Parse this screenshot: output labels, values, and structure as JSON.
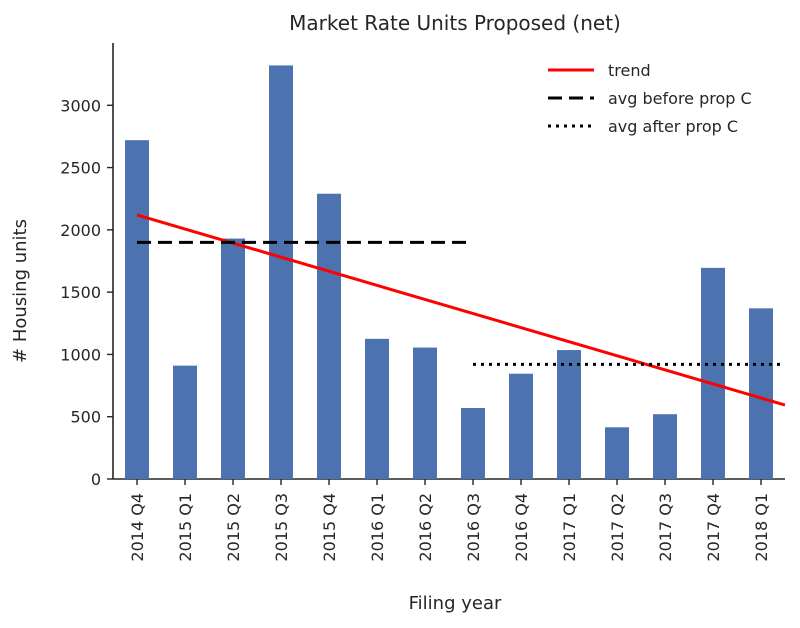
{
  "chart_data": {
    "type": "bar",
    "title": "Market Rate Units Proposed (net)",
    "xlabel": "Filing year",
    "ylabel": "# Housing units",
    "categories": [
      "2014 Q4",
      "2015 Q1",
      "2015 Q2",
      "2015 Q3",
      "2015 Q4",
      "2016 Q1",
      "2016 Q2",
      "2016 Q3",
      "2016 Q4",
      "2017 Q1",
      "2017 Q2",
      "2017 Q3",
      "2017 Q4",
      "2018 Q1"
    ],
    "values": [
      2720,
      910,
      1930,
      3320,
      2290,
      1125,
      1055,
      570,
      845,
      1035,
      415,
      520,
      1695,
      1370
    ],
    "ylim": [
      0,
      3500
    ],
    "yticks": [
      0,
      500,
      1000,
      1500,
      2000,
      2500,
      3000
    ],
    "grid": false,
    "bar_color": "#4c72b0",
    "lines": [
      {
        "name": "trend",
        "color": "#ff0000",
        "style": "solid",
        "x_start": "2014 Q4",
        "y_start": 2120,
        "x_end": "2018 Q1",
        "y_end": 650
      },
      {
        "name": "avg before prop C",
        "color": "#000000",
        "style": "dashed",
        "x_start": "2014 Q4",
        "x_end": "2016 Q3",
        "y": 1900
      },
      {
        "name": "avg after prop C",
        "color": "#000000",
        "style": "dotted",
        "x_start": "2016 Q3",
        "x_end": "2018 Q1",
        "y": 920
      }
    ],
    "legend": {
      "position": "top-right",
      "entries": [
        "trend",
        "avg before prop C",
        "avg after prop C"
      ]
    }
  }
}
